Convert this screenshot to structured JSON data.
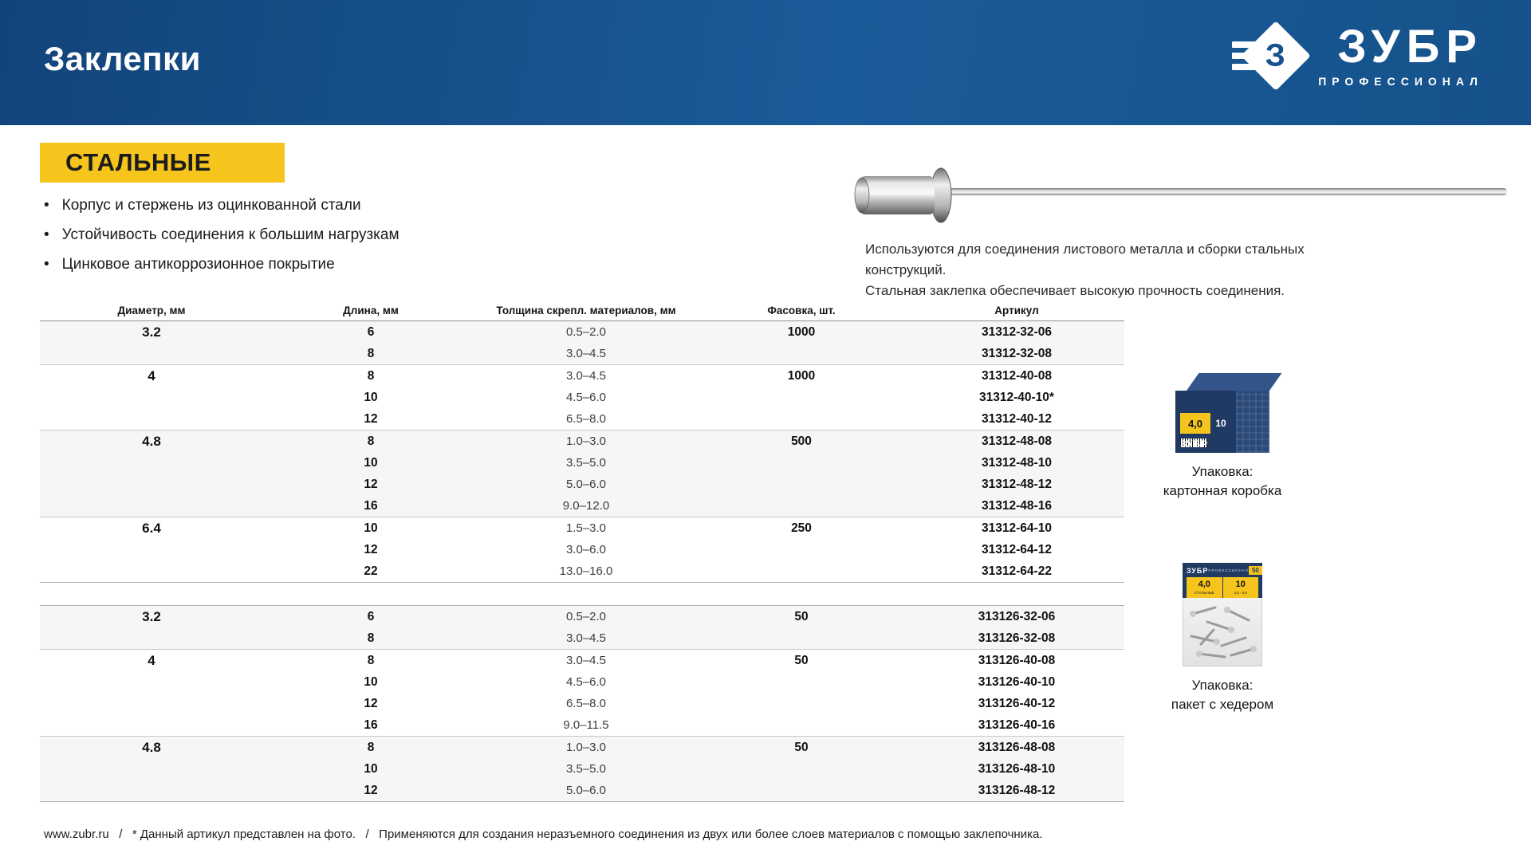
{
  "page": {
    "title": "Заклепки"
  },
  "brand": {
    "name": "ЗУБР",
    "tagline": "ПРОФЕССИОНАЛ",
    "logo_letter": "З"
  },
  "section": {
    "badge": "СТАЛЬНЫЕ",
    "bullets": [
      "Корпус и стержень из оцинкованной стали",
      "Устойчивость соединения к большим нагрузкам",
      "Цинковое антикоррозионное покрытие"
    ],
    "description": [
      "Используются для соединения листового металла и сборки стальных конструкций.",
      "Стальная заклепка обеспечивает высокую прочность соединения."
    ]
  },
  "table": {
    "headers": [
      "Диаметр, мм",
      "Длина, мм",
      "Толщина скрепл. материалов, мм",
      "Фасовка, шт.",
      "Артикул"
    ],
    "sections": [
      {
        "groups": [
          {
            "diameter": "3.2",
            "pack": "1000",
            "rows": [
              {
                "length": "6",
                "thickness": "0.5–2.0",
                "article": "31312-32-06"
              },
              {
                "length": "8",
                "thickness": "3.0–4.5",
                "article": "31312-32-08"
              }
            ]
          },
          {
            "diameter": "4",
            "pack": "1000",
            "rows": [
              {
                "length": "8",
                "thickness": "3.0–4.5",
                "article": "31312-40-08"
              },
              {
                "length": "10",
                "thickness": "4.5–6.0",
                "article": "31312-40-10*"
              },
              {
                "length": "12",
                "thickness": "6.5–8.0",
                "article": "31312-40-12"
              }
            ]
          },
          {
            "diameter": "4.8",
            "pack": "500",
            "rows": [
              {
                "length": "8",
                "thickness": "1.0–3.0",
                "article": "31312-48-08"
              },
              {
                "length": "10",
                "thickness": "3.5–5.0",
                "article": "31312-48-10"
              },
              {
                "length": "12",
                "thickness": "5.0–6.0",
                "article": "31312-48-12"
              },
              {
                "length": "16",
                "thickness": "9.0–12.0",
                "article": "31312-48-16"
              }
            ]
          },
          {
            "diameter": "6.4",
            "pack": "250",
            "rows": [
              {
                "length": "10",
                "thickness": "1.5–3.0",
                "article": "31312-64-10"
              },
              {
                "length": "12",
                "thickness": "3.0–6.0",
                "article": "31312-64-12"
              },
              {
                "length": "22",
                "thickness": "13.0–16.0",
                "article": "31312-64-22"
              }
            ]
          }
        ]
      },
      {
        "groups": [
          {
            "diameter": "3.2",
            "pack": "50",
            "rows": [
              {
                "length": "6",
                "thickness": "0.5–2.0",
                "article": "313126-32-06"
              },
              {
                "length": "8",
                "thickness": "3.0–4.5",
                "article": "313126-32-08"
              }
            ]
          },
          {
            "diameter": "4",
            "pack": "50",
            "rows": [
              {
                "length": "8",
                "thickness": "3.0–4.5",
                "article": "313126-40-08"
              },
              {
                "length": "10",
                "thickness": "4.5–6.0",
                "article": "313126-40-10"
              },
              {
                "length": "12",
                "thickness": "6.5–8.0",
                "article": "313126-40-12"
              },
              {
                "length": "16",
                "thickness": "9.0–11.5",
                "article": "313126-40-16"
              }
            ]
          },
          {
            "diameter": "4.8",
            "pack": "50",
            "rows": [
              {
                "length": "8",
                "thickness": "1.0–3.0",
                "article": "313126-48-08"
              },
              {
                "length": "10",
                "thickness": "3.5–5.0",
                "article": "313126-48-10"
              },
              {
                "length": "12",
                "thickness": "5.0–6.0",
                "article": "313126-48-12"
              }
            ]
          }
        ]
      }
    ]
  },
  "packaging": [
    {
      "caption1": "Упаковка:",
      "caption2": "картонная коробка",
      "size_d": "4,0",
      "size_l": "10",
      "brand": "ЗУБР"
    },
    {
      "caption1": "Упаковка:",
      "caption2": "пакет с хедером",
      "brand": "ЗУБР",
      "tagline": "ПРОФЕССИОНАЛ",
      "qty": "50",
      "size_d": "4,0",
      "sub_d": "СТАЛЬНЫЕ",
      "size_l": "10",
      "sub_l": "4,5 - 6,0"
    }
  ],
  "footer": {
    "text": "www.zubr.ru   /   * Данный артикул представлен на фото.   /   Применяются для создания неразъемного соединения из двух или более слоев материалов с помощью заклепочника."
  },
  "colors": {
    "header_blue": "#16538f",
    "accent_yellow": "#f5c41d",
    "navy": "#203a63",
    "row_shade": "#f6f6f6"
  }
}
